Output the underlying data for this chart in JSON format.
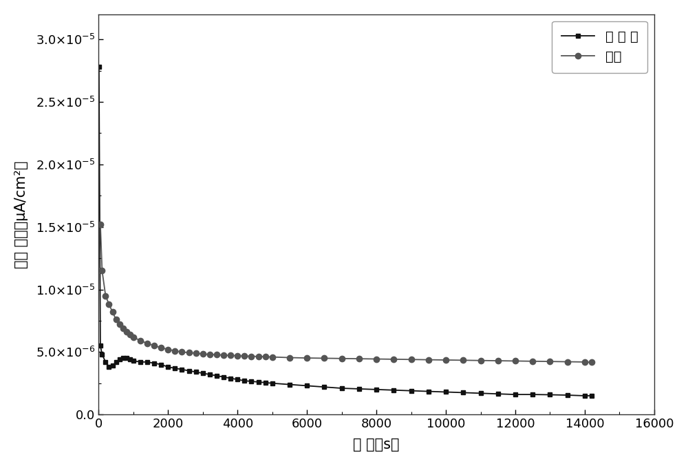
{
  "title": "",
  "xlabel": "时 间（s）",
  "ylabel": "电流 密度（μA/cm²）",
  "xlim": [
    0,
    15000
  ],
  "ylim": [
    0,
    3.2e-05
  ],
  "xticks": [
    0,
    2000,
    4000,
    6000,
    8000,
    10000,
    12000,
    14000,
    16000
  ],
  "ytick_values": [
    0.0,
    5e-06,
    1e-05,
    1.5e-05,
    2e-05,
    2.5e-05,
    3e-05
  ],
  "ytick_labels": [
    "0.0",
    "5.0×10$^{-6}$",
    "1.0×10$^{-5}$",
    "1.5×10$^{-5}$",
    "2.0×10$^{-5}$",
    "2.5×10$^{-5}$",
    "3.0×10$^{-5}$"
  ],
  "legend_label1": "本 发 明",
  "legend_label2": "基底",
  "series1_color": "#111111",
  "series2_color": "#555555",
  "background_color": "#ffffff",
  "series1_x": [
    10,
    50,
    100,
    200,
    300,
    400,
    500,
    600,
    700,
    800,
    900,
    1000,
    1200,
    1400,
    1600,
    1800,
    2000,
    2200,
    2400,
    2600,
    2800,
    3000,
    3200,
    3400,
    3600,
    3800,
    4000,
    4200,
    4400,
    4600,
    4800,
    5000,
    5500,
    6000,
    6500,
    7000,
    7500,
    8000,
    8500,
    9000,
    9500,
    10000,
    10500,
    11000,
    11500,
    12000,
    12500,
    13000,
    13500,
    14000,
    14200
  ],
  "series1_y": [
    2.78e-05,
    5.5e-06,
    4.8e-06,
    4.2e-06,
    3.8e-06,
    3.9e-06,
    4.2e-06,
    4.4e-06,
    4.5e-06,
    4.5e-06,
    4.4e-06,
    4.3e-06,
    4.2e-06,
    4.2e-06,
    4.1e-06,
    4e-06,
    3.8e-06,
    3.7e-06,
    3.6e-06,
    3.5e-06,
    3.4e-06,
    3.3e-06,
    3.2e-06,
    3.1e-06,
    3e-06,
    2.9e-06,
    2.8e-06,
    2.7e-06,
    2.65e-06,
    2.6e-06,
    2.55e-06,
    2.5e-06,
    2.4e-06,
    2.3e-06,
    2.2e-06,
    2.1e-06,
    2.05e-06,
    2e-06,
    1.95e-06,
    1.9e-06,
    1.85e-06,
    1.8e-06,
    1.75e-06,
    1.7e-06,
    1.65e-06,
    1.6e-06,
    1.6e-06,
    1.58e-06,
    1.55e-06,
    1.5e-06,
    1.5e-06
  ],
  "series2_x": [
    50,
    100,
    200,
    300,
    400,
    500,
    600,
    700,
    800,
    900,
    1000,
    1200,
    1400,
    1600,
    1800,
    2000,
    2200,
    2400,
    2600,
    2800,
    3000,
    3200,
    3400,
    3600,
    3800,
    4000,
    4200,
    4400,
    4600,
    4800,
    5000,
    5500,
    6000,
    6500,
    7000,
    7500,
    8000,
    8500,
    9000,
    9500,
    10000,
    10500,
    11000,
    11500,
    12000,
    12500,
    13000,
    13500,
    14000,
    14200
  ],
  "series2_y": [
    1.52e-05,
    1.15e-05,
    9.5e-06,
    8.8e-06,
    8.2e-06,
    7.6e-06,
    7.2e-06,
    6.9e-06,
    6.6e-06,
    6.4e-06,
    6.2e-06,
    5.9e-06,
    5.7e-06,
    5.5e-06,
    5.35e-06,
    5.2e-06,
    5.1e-06,
    5e-06,
    4.95e-06,
    4.9e-06,
    4.85e-06,
    4.8e-06,
    4.78e-06,
    4.75e-06,
    4.72e-06,
    4.7e-06,
    4.68e-06,
    4.66e-06,
    4.64e-06,
    4.62e-06,
    4.6e-06,
    4.55e-06,
    4.52e-06,
    4.5e-06,
    4.48e-06,
    4.46e-06,
    4.44e-06,
    4.42e-06,
    4.4e-06,
    4.38e-06,
    4.36e-06,
    4.34e-06,
    4.32e-06,
    4.3e-06,
    4.28e-06,
    4.26e-06,
    4.24e-06,
    4.22e-06,
    4.2e-06,
    4.18e-06
  ]
}
